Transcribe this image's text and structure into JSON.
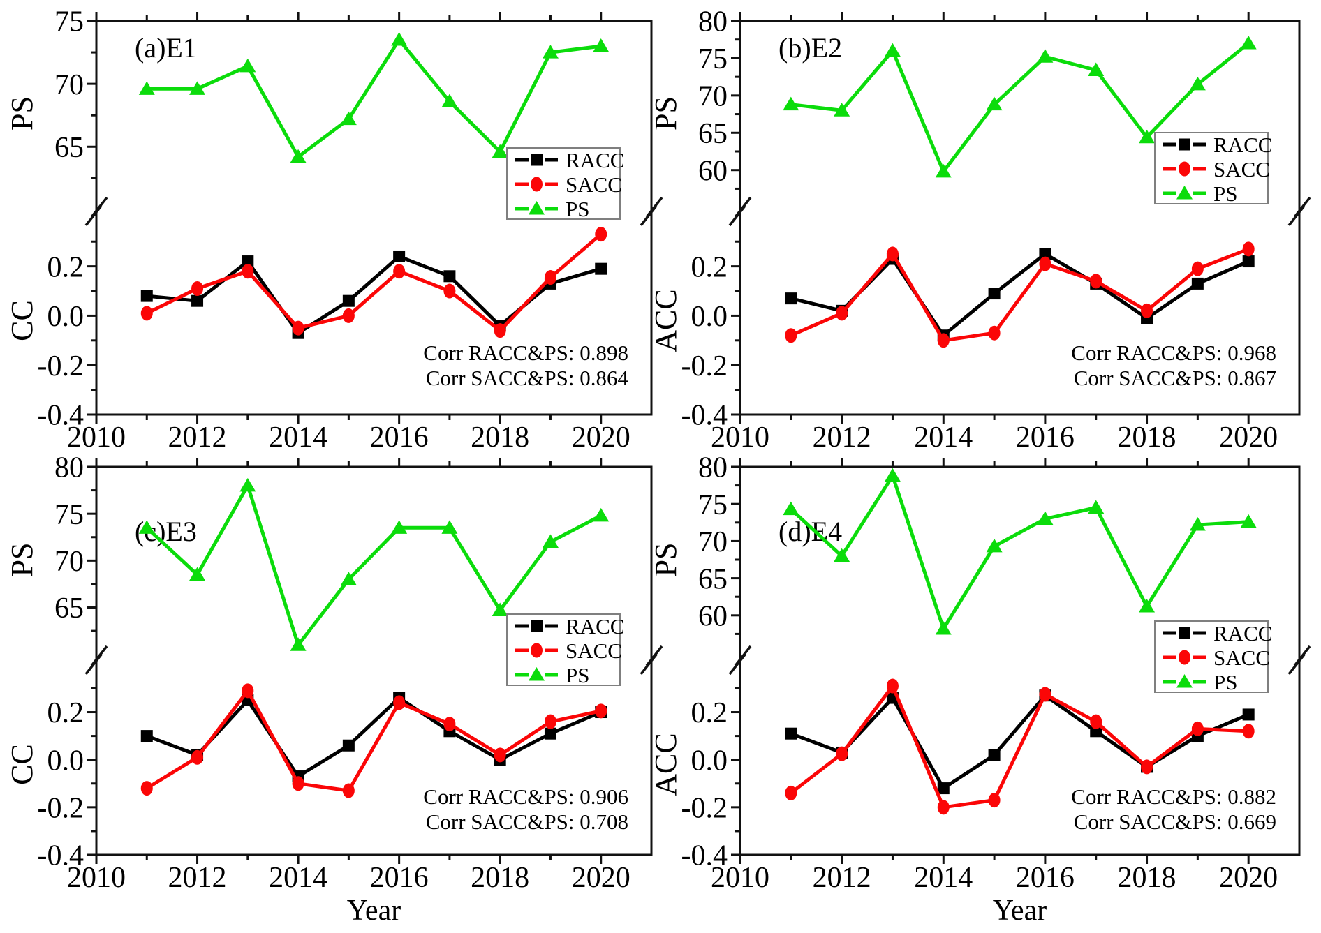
{
  "figure": {
    "background": "#ffffff",
    "colors": {
      "racc": "#000000",
      "sacc": "#fb0607",
      "ps": "#0bdc0b",
      "frame": "#111111",
      "legend_border": "#7f7f7f",
      "text": "#000000"
    },
    "x_axis": {
      "label": "Year",
      "range": [
        2010,
        2021
      ],
      "major_ticks": [
        2010,
        2012,
        2014,
        2016,
        2018,
        2020
      ],
      "minor_ticks": [
        2011,
        2013,
        2015,
        2017,
        2019
      ]
    },
    "legend": {
      "items": [
        {
          "label": "RACC",
          "series": "RACC"
        },
        {
          "label": "SACC",
          "series": "SACC"
        },
        {
          "label": "PS",
          "series": "PS"
        }
      ]
    }
  },
  "chart_data": [
    {
      "type": "line",
      "panel": "a",
      "title": "(a)E1",
      "x": [
        2011,
        2012,
        2013,
        2014,
        2015,
        2016,
        2017,
        2018,
        2019,
        2020
      ],
      "top_axis": {
        "ylabel": "PS",
        "range": [
          60.3,
          75
        ],
        "ticks": [
          75,
          70,
          65
        ],
        "minor_ticks": [
          72.5,
          67.5,
          62.5
        ]
      },
      "bottom_axis": {
        "ylabel": "CC",
        "range": [
          -0.4,
          0.36
        ],
        "ticks": [
          0.2,
          0.0,
          -0.2,
          -0.4
        ],
        "tick_labels": [
          "0.2",
          "0.0",
          "-0.2",
          "-0.4"
        ],
        "minor_ticks": [
          0.3,
          0.1,
          -0.1,
          -0.3
        ]
      },
      "series": [
        {
          "name": "RACC",
          "axis": "bottom",
          "marker": "square",
          "color": "racc",
          "values": [
            0.08,
            0.06,
            0.22,
            -0.07,
            0.06,
            0.24,
            0.16,
            -0.04,
            0.13,
            0.19
          ]
        },
        {
          "name": "SACC",
          "axis": "bottom",
          "marker": "circle",
          "color": "sacc",
          "values": [
            0.01,
            0.11,
            0.18,
            -0.05,
            0.0,
            0.18,
            0.1,
            -0.06,
            0.155,
            0.33
          ]
        },
        {
          "name": "PS",
          "axis": "top",
          "marker": "triangle",
          "color": "ps",
          "values": [
            69.6,
            69.6,
            71.4,
            64.2,
            67.2,
            73.5,
            68.6,
            64.6,
            72.5,
            73.0
          ]
        }
      ],
      "annotations": [
        "Corr RACC&PS: 0.898",
        "Corr SACC&PS: 0.864"
      ],
      "show_xlabel": false
    },
    {
      "type": "line",
      "panel": "b",
      "title": "(b)E2",
      "x": [
        2011,
        2012,
        2013,
        2014,
        2015,
        2016,
        2017,
        2018,
        2019,
        2020
      ],
      "top_axis": {
        "ylabel": "PS",
        "range": [
          55.2,
          80
        ],
        "ticks": [
          80,
          75,
          70,
          65,
          60
        ],
        "minor_ticks": [
          77.5,
          72.5,
          67.5,
          62.5,
          57.5
        ]
      },
      "bottom_axis": {
        "ylabel": "ACC",
        "range": [
          -0.4,
          0.36
        ],
        "ticks": [
          0.2,
          0.0,
          -0.2,
          -0.4
        ],
        "tick_labels": [
          "0.2",
          "0.0",
          "-0.2",
          "-0.4"
        ],
        "minor_ticks": [
          0.3,
          0.1,
          -0.1,
          -0.3
        ]
      },
      "series": [
        {
          "name": "RACC",
          "axis": "bottom",
          "marker": "square",
          "color": "racc",
          "values": [
            0.07,
            0.02,
            0.23,
            -0.08,
            0.09,
            0.25,
            0.13,
            -0.01,
            0.13,
            0.22
          ]
        },
        {
          "name": "SACC",
          "axis": "bottom",
          "marker": "circle",
          "color": "sacc",
          "values": [
            -0.08,
            0.01,
            0.25,
            -0.1,
            -0.07,
            0.21,
            0.14,
            0.02,
            0.19,
            0.27
          ]
        },
        {
          "name": "PS",
          "axis": "top",
          "marker": "triangle",
          "color": "ps",
          "values": [
            68.8,
            68.0,
            76.0,
            59.8,
            68.8,
            75.2,
            73.4,
            64.4,
            71.5,
            77.0
          ]
        }
      ],
      "annotations": [
        "Corr RACC&PS: 0.968",
        "Corr SACC&PS: 0.867"
      ],
      "show_xlabel": false
    },
    {
      "type": "line",
      "panel": "c",
      "title": "(c)E3",
      "x": [
        2011,
        2012,
        2013,
        2014,
        2015,
        2016,
        2017,
        2018,
        2019,
        2020
      ],
      "top_axis": {
        "ylabel": "PS",
        "range": [
          60.2,
          80
        ],
        "ticks": [
          80,
          75,
          70,
          65
        ],
        "minor_ticks": [
          77.5,
          72.5,
          67.5,
          62.5
        ]
      },
      "bottom_axis": {
        "ylabel": "CC",
        "range": [
          -0.4,
          0.36
        ],
        "ticks": [
          0.2,
          0.0,
          -0.2,
          -0.4
        ],
        "tick_labels": [
          "0.2",
          "0.0",
          "-0.2",
          "-0.4"
        ],
        "minor_ticks": [
          0.3,
          0.1,
          -0.1,
          -0.3
        ]
      },
      "series": [
        {
          "name": "RACC",
          "axis": "bottom",
          "marker": "square",
          "color": "racc",
          "values": [
            0.1,
            0.02,
            0.25,
            -0.07,
            0.06,
            0.26,
            0.12,
            0.0,
            0.11,
            0.2
          ]
        },
        {
          "name": "SACC",
          "axis": "bottom",
          "marker": "circle",
          "color": "sacc",
          "values": [
            -0.12,
            0.01,
            0.29,
            -0.1,
            -0.13,
            0.24,
            0.15,
            0.02,
            0.16,
            0.205
          ]
        },
        {
          "name": "PS",
          "axis": "top",
          "marker": "triangle",
          "color": "ps",
          "values": [
            73.5,
            68.5,
            78.0,
            61.0,
            68.0,
            73.5,
            73.5,
            64.7,
            72.0,
            74.8
          ]
        }
      ],
      "annotations": [
        "Corr RACC&PS: 0.906",
        "Corr SACC&PS: 0.708"
      ],
      "show_xlabel": true
    },
    {
      "type": "line",
      "panel": "d",
      "title": "(d)E4",
      "x": [
        2011,
        2012,
        2013,
        2014,
        2015,
        2016,
        2017,
        2018,
        2019,
        2020
      ],
      "top_axis": {
        "ylabel": "PS",
        "range": [
          55.0,
          80
        ],
        "ticks": [
          80,
          75,
          70,
          65,
          60
        ],
        "minor_ticks": [
          77.5,
          72.5,
          67.5,
          62.5,
          57.5
        ]
      },
      "bottom_axis": {
        "ylabel": "ACC",
        "range": [
          -0.4,
          0.36
        ],
        "ticks": [
          0.2,
          0.0,
          -0.2,
          -0.4
        ],
        "tick_labels": [
          "0.2",
          "0.0",
          "-0.2",
          "-0.4"
        ],
        "minor_ticks": [
          0.3,
          0.1,
          -0.1,
          -0.3
        ]
      },
      "series": [
        {
          "name": "RACC",
          "axis": "bottom",
          "marker": "square",
          "color": "racc",
          "values": [
            0.11,
            0.03,
            0.26,
            -0.12,
            0.02,
            0.27,
            0.12,
            -0.03,
            0.1,
            0.19
          ]
        },
        {
          "name": "SACC",
          "axis": "bottom",
          "marker": "circle",
          "color": "sacc",
          "values": [
            -0.14,
            0.025,
            0.31,
            -0.2,
            -0.17,
            0.275,
            0.16,
            -0.03,
            0.13,
            0.12
          ]
        },
        {
          "name": "PS",
          "axis": "top",
          "marker": "triangle",
          "color": "ps",
          "values": [
            74.3,
            68.0,
            78.8,
            58.2,
            69.3,
            73.0,
            74.5,
            61.2,
            72.2,
            72.6
          ]
        }
      ],
      "annotations": [
        "Corr RACC&PS: 0.882",
        "Corr SACC&PS: 0.669"
      ],
      "show_xlabel": true
    }
  ]
}
